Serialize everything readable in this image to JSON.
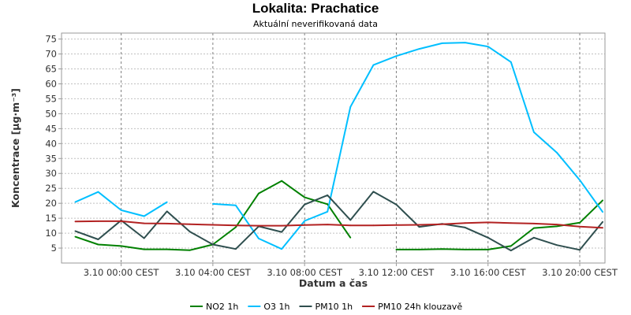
{
  "chart_data": {
    "type": "line",
    "title": "Lokalita: Prachatice",
    "subtitle": "Aktuální neverifikovaná data",
    "xlabel": "Datum a čas",
    "ylabel": "Koncentrace [µg·m⁻³]",
    "ylim": [
      0,
      77
    ],
    "yticks": [
      5,
      10,
      15,
      20,
      25,
      30,
      35,
      40,
      45,
      50,
      55,
      60,
      65,
      70,
      75
    ],
    "xlim": [
      -2.6,
      21.1
    ],
    "xticks": [
      {
        "x": 0,
        "label": "3.10 00:00 CEST"
      },
      {
        "x": 4,
        "label": "3.10 04:00 CEST"
      },
      {
        "x": 8,
        "label": "3.10 08:00 CEST"
      },
      {
        "x": 12,
        "label": "3.10 12:00 CEST"
      },
      {
        "x": 16,
        "label": "3.10 16:00 CEST"
      },
      {
        "x": 20,
        "label": "3.10 20:00 CEST"
      }
    ],
    "grid": true,
    "legend_position": "bottom",
    "series": [
      {
        "name": "NO2 1h",
        "color": "#008000",
        "points": [
          [
            [
              -2,
              8.8
            ],
            [
              -1,
              6.2
            ],
            [
              0,
              5.7
            ],
            [
              1,
              4.6
            ],
            [
              2,
              4.6
            ],
            [
              3,
              4.3
            ],
            [
              4,
              6.2
            ],
            [
              5,
              12
            ],
            [
              6,
              23.3
            ],
            [
              7,
              27.5
            ],
            [
              8,
              22
            ],
            [
              9,
              19.7
            ],
            [
              10,
              8.5
            ]
          ],
          [
            [
              12,
              4.5
            ],
            [
              13,
              4.5
            ],
            [
              14,
              4.7
            ],
            [
              15,
              4.5
            ],
            [
              16,
              4.5
            ],
            [
              17,
              5.7
            ],
            [
              18,
              11.7
            ],
            [
              19,
              12.3
            ],
            [
              20,
              13.5
            ],
            [
              21,
              21
            ]
          ]
        ]
      },
      {
        "name": "O3 1h",
        "color": "#00bfff",
        "points": [
          [
            [
              -2,
              20.4
            ],
            [
              -1,
              23.8
            ],
            [
              0,
              17.7
            ],
            [
              1,
              15.7
            ],
            [
              2,
              20.4
            ]
          ],
          [
            [
              4,
              19.8
            ],
            [
              5,
              19.3
            ],
            [
              6,
              8.2
            ],
            [
              7,
              4.7
            ],
            [
              8,
              14.1
            ],
            [
              9,
              17.2
            ],
            [
              10,
              52.3
            ],
            [
              11,
              66.3
            ],
            [
              12,
              69.3
            ],
            [
              13,
              71.7
            ],
            [
              14,
              73.6
            ],
            [
              15,
              73.8
            ],
            [
              16,
              72.5
            ],
            [
              17,
              67.3
            ],
            [
              18,
              43.8
            ],
            [
              19,
              37
            ],
            [
              20,
              27.8
            ],
            [
              21,
              17.1
            ]
          ]
        ]
      },
      {
        "name": "PM10 1h",
        "color": "#2f4f4f",
        "points": [
          [
            [
              -2,
              10.7
            ],
            [
              -1,
              7.9
            ],
            [
              0,
              14.3
            ],
            [
              1,
              8.3
            ],
            [
              2,
              17.3
            ],
            [
              3,
              10.5
            ],
            [
              4,
              6.2
            ],
            [
              5,
              4.7
            ],
            [
              6,
              12.3
            ],
            [
              7,
              10.4
            ],
            [
              8,
              19.6
            ],
            [
              9,
              22.7
            ],
            [
              10,
              14.4
            ],
            [
              11,
              23.9
            ],
            [
              12,
              19.6
            ],
            [
              13,
              12.1
            ],
            [
              14,
              13.1
            ],
            [
              15,
              11.9
            ],
            [
              16,
              8.5
            ],
            [
              17,
              4.2
            ],
            [
              18,
              8.5
            ],
            [
              19,
              6
            ],
            [
              20,
              4.4
            ],
            [
              21,
              13.8
            ]
          ]
        ]
      },
      {
        "name": "PM10 24h klouzavě",
        "color": "#b22222",
        "points": [
          [
            [
              -2,
              13.9
            ],
            [
              -1,
              14
            ],
            [
              0,
              14
            ],
            [
              1,
              13.3
            ],
            [
              2,
              13.2
            ],
            [
              3,
              13
            ],
            [
              4,
              12.8
            ],
            [
              5,
              12.6
            ],
            [
              6,
              12.5
            ],
            [
              7,
              12.5
            ],
            [
              8,
              12.7
            ],
            [
              9,
              12.9
            ],
            [
              10,
              12.6
            ],
            [
              11,
              12.6
            ],
            [
              12,
              12.7
            ],
            [
              13,
              12.8
            ],
            [
              14,
              13
            ],
            [
              15,
              13.4
            ],
            [
              16,
              13.6
            ],
            [
              17,
              13.4
            ],
            [
              18,
              13.2
            ],
            [
              19,
              12.9
            ],
            [
              20,
              12.2
            ],
            [
              21,
              11.8
            ]
          ]
        ]
      }
    ]
  }
}
